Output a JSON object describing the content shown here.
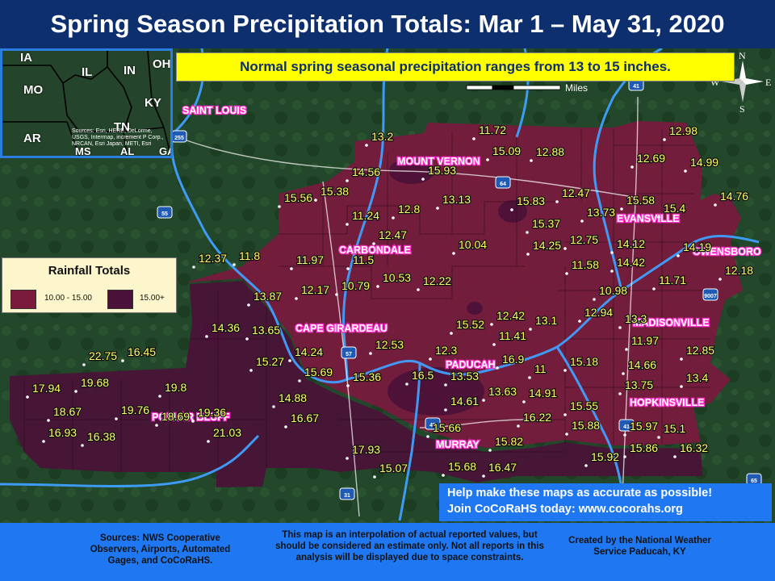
{
  "title": "Spring Season Precipitation Totals: Mar 1 – May 31, 2020",
  "note": "Normal spring seasonal precipitation ranges from 13 to 15 inches.",
  "scale_label": "Miles",
  "compass": {
    "n": "N",
    "s": "S",
    "e": "E",
    "w": "W"
  },
  "inset": {
    "states": [
      "IA",
      "IL",
      "IN",
      "OH",
      "MO",
      "KY",
      "AR",
      "TN",
      "MS",
      "AL",
      "GA"
    ],
    "sources_text": "Sources: Esri, HERE, DeLorme, USGS, Intermap, increment P Corp., NRCAN, Esri Japan, METI, Esri China (Hong Kong), Esri (Thailand), TomTom, 2013"
  },
  "legend": {
    "title": "Rainfall Totals",
    "classes": [
      {
        "label": "10.00 - 15.00",
        "color": "#7a1a3d"
      },
      {
        "label": "15.00+",
        "color": "#4a1238"
      }
    ]
  },
  "cities": [
    "SAINT LOUIS",
    "MOUNT VERNON",
    "EVANSVILLE",
    "OWENSBORO",
    "CARBONDALE",
    "CAPE GIRARDEAU",
    "MADISONVILLE",
    "PADUCAH",
    "HOPKINSVILLE",
    "POPLAR BLUFF",
    "MURRAY"
  ],
  "highway_shields": [
    "255",
    "55",
    "64",
    "41",
    "57",
    "9007",
    "45",
    "41",
    "31",
    "65"
  ],
  "values": [
    "13.2",
    "11.72",
    "15.09",
    "12.88",
    "12.98",
    "12.69",
    "14.99",
    "14.56",
    "15.93",
    "15.56",
    "15.38",
    "13.13",
    "15.83",
    "12.47",
    "15.58",
    "15.4",
    "14.76",
    "11.24",
    "12.8",
    "15.37",
    "13.73",
    "12.47",
    "14.25",
    "12.75",
    "14.12",
    "14.19",
    "12.37",
    "11.8",
    "11.97",
    "11.5",
    "10.04",
    "11.58",
    "14.42",
    "12.18",
    "12.17",
    "10.79",
    "10.53",
    "12.22",
    "11.71",
    "13.87",
    "10.98",
    "14.36",
    "13.65",
    "15.52",
    "12.42",
    "13.1",
    "12.94",
    "13.3",
    "11.41",
    "11.97",
    "14.24",
    "12.53",
    "22.75",
    "16.45",
    "15.27",
    "12.3",
    "16.9",
    "15.18",
    "12.85",
    "15.69",
    "15.36",
    "16.5",
    "13.53",
    "11",
    "14.66",
    "19.68",
    "17.94",
    "19.8",
    "13.63",
    "14.91",
    "13.75",
    "13.4",
    "14.88",
    "14.61",
    "18.67",
    "19.76",
    "18.69",
    "19.36",
    "16.67",
    "15.55",
    "16.22",
    "15.88",
    "15.97",
    "15.1",
    "16.93",
    "16.38",
    "21.03",
    "15.66",
    "15.82",
    "15.86",
    "16.32",
    "17.93",
    "15.92",
    "15.07",
    "15.68",
    "16.47"
  ],
  "cocorahs": {
    "line1": "Help make these maps as accurate as possible!",
    "line2": "Join CoCoRaHS today: www.cocorahs.org"
  },
  "footer": {
    "sources": "Sources: NWS Cooperative Observers, Airports, Automated Gages, and CoCoRaHS.",
    "disclaimer": "This map is an interpolation of actual reported values, but should be considered an estimate only. Not all reports in this analysis will be displayed due to space constraints.",
    "created": "Created by the National Weather Service Paducah, KY"
  },
  "colors": {
    "title_bg": "#0d2f6e",
    "band_10_15": "#7a1a3d",
    "band_15_plus": "#4a1238",
    "value_text": "#ffff66",
    "footer_bg": "#1f78f2",
    "note_bg": "#ffff00"
  }
}
